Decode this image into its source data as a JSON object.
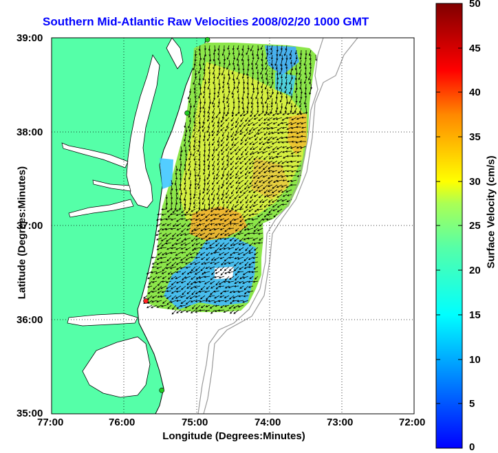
{
  "title": "Southern Mid-Atlantic Raw Velocities 2008/02/20 1000 GMT",
  "axes": {
    "xlabel": "Longitude (Degrees:Minutes)",
    "ylabel": "Latitude (Degrees:Minutes)",
    "xticks": [
      "77:00",
      "76:00",
      "75:00",
      "74:00",
      "73:00",
      "72:00"
    ],
    "yticks": [
      "39:00",
      "38:00",
      "37:00",
      "36:00",
      "35:00"
    ],
    "xlim": [
      -77,
      -72
    ],
    "ylim": [
      35,
      39
    ],
    "grid": "dotted"
  },
  "colorbar": {
    "label": "Surface Velocity (cm/s)",
    "ticks": [
      "50",
      "45",
      "40",
      "35",
      "30",
      "25",
      "20",
      "15",
      "10",
      "5",
      "0"
    ],
    "range": [
      0,
      50
    ],
    "colormap": "jet"
  },
  "colors": {
    "land": "#55ffa8",
    "water": "#ffffff",
    "title": "#0000ff",
    "arrows": "#000000",
    "bathymetry": "#999999"
  },
  "stations": [
    {
      "name": "north-station",
      "lon": -74.85,
      "lat": 38.98,
      "color": "#22cc22"
    },
    {
      "name": "mid-station",
      "lon": -75.13,
      "lat": 38.2,
      "color": "#22cc22"
    },
    {
      "name": "red-station",
      "lon": -75.7,
      "lat": 36.2,
      "color": "#ff2020"
    },
    {
      "name": "south-station",
      "lon": -75.48,
      "lat": 35.25,
      "color": "#22cc22"
    }
  ]
}
